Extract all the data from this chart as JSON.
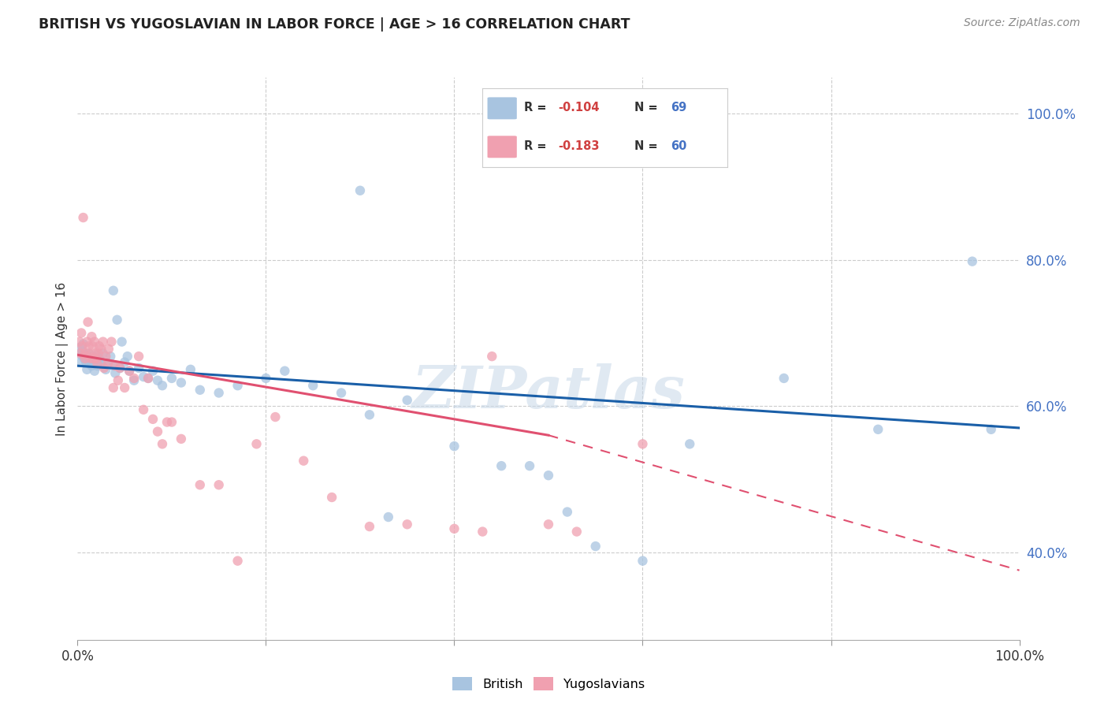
{
  "title": "BRITISH VS YUGOSLAVIAN IN LABOR FORCE | AGE > 16 CORRELATION CHART",
  "source": "Source: ZipAtlas.com",
  "ylabel": "In Labor Force | Age > 16",
  "ylabel_right_ticks": [
    "100.0%",
    "80.0%",
    "60.0%",
    "40.0%"
  ],
  "ylabel_right_vals": [
    1.0,
    0.8,
    0.6,
    0.4
  ],
  "legend_blue_r": "-0.104",
  "legend_blue_n": "69",
  "legend_pink_r": "-0.183",
  "legend_pink_n": "60",
  "british_color": "#a8c4e0",
  "yugoslavian_color": "#f0a0b0",
  "trendline_blue": "#1a5fa8",
  "trendline_pink": "#e05070",
  "watermark": "ZIPatlas",
  "british_x": [
    0.002,
    0.003,
    0.004,
    0.005,
    0.006,
    0.007,
    0.008,
    0.009,
    0.01,
    0.011,
    0.012,
    0.013,
    0.014,
    0.015,
    0.016,
    0.017,
    0.018,
    0.019,
    0.02,
    0.021,
    0.022,
    0.023,
    0.025,
    0.027,
    0.03,
    0.032,
    0.035,
    0.038,
    0.04,
    0.045,
    0.05,
    0.055,
    0.06,
    0.065,
    0.07,
    0.075,
    0.08,
    0.085,
    0.09,
    0.1,
    0.11,
    0.12,
    0.13,
    0.15,
    0.17,
    0.2,
    0.22,
    0.25,
    0.28,
    0.31,
    0.35,
    0.4,
    0.45,
    0.48,
    0.5,
    0.52,
    0.55,
    0.6,
    0.65,
    0.75,
    0.85,
    0.95,
    0.97,
    0.3,
    0.33,
    0.038,
    0.042,
    0.047,
    0.053
  ],
  "british_y": [
    0.68,
    0.67,
    0.66,
    0.675,
    0.685,
    0.665,
    0.67,
    0.66,
    0.65,
    0.668,
    0.672,
    0.658,
    0.662,
    0.655,
    0.668,
    0.66,
    0.648,
    0.665,
    0.67,
    0.655,
    0.66,
    0.665,
    0.66,
    0.672,
    0.65,
    0.658,
    0.668,
    0.655,
    0.645,
    0.652,
    0.66,
    0.648,
    0.635,
    0.652,
    0.64,
    0.638,
    0.648,
    0.635,
    0.628,
    0.638,
    0.632,
    0.65,
    0.622,
    0.618,
    0.628,
    0.638,
    0.648,
    0.628,
    0.618,
    0.588,
    0.608,
    0.545,
    0.518,
    0.518,
    0.505,
    0.455,
    0.408,
    0.388,
    0.548,
    0.638,
    0.568,
    0.798,
    0.568,
    0.895,
    0.448,
    0.758,
    0.718,
    0.688,
    0.668
  ],
  "yugoslavian_x": [
    0.002,
    0.003,
    0.004,
    0.005,
    0.006,
    0.007,
    0.008,
    0.009,
    0.01,
    0.011,
    0.012,
    0.013,
    0.014,
    0.015,
    0.016,
    0.017,
    0.018,
    0.019,
    0.02,
    0.021,
    0.022,
    0.023,
    0.025,
    0.027,
    0.03,
    0.033,
    0.036,
    0.04,
    0.045,
    0.05,
    0.055,
    0.06,
    0.065,
    0.07,
    0.08,
    0.09,
    0.1,
    0.11,
    0.13,
    0.15,
    0.17,
    0.19,
    0.21,
    0.24,
    0.27,
    0.31,
    0.35,
    0.4,
    0.43,
    0.44,
    0.5,
    0.53,
    0.6,
    0.028,
    0.032,
    0.038,
    0.043,
    0.075,
    0.085,
    0.095
  ],
  "yugoslavian_y": [
    0.688,
    0.672,
    0.7,
    0.682,
    0.858,
    0.67,
    0.665,
    0.672,
    0.688,
    0.715,
    0.682,
    0.67,
    0.665,
    0.695,
    0.682,
    0.665,
    0.688,
    0.672,
    0.665,
    0.658,
    0.672,
    0.682,
    0.678,
    0.688,
    0.668,
    0.678,
    0.688,
    0.655,
    0.652,
    0.625,
    0.648,
    0.638,
    0.668,
    0.595,
    0.582,
    0.548,
    0.578,
    0.555,
    0.492,
    0.492,
    0.388,
    0.548,
    0.585,
    0.525,
    0.475,
    0.435,
    0.438,
    0.432,
    0.428,
    0.668,
    0.438,
    0.428,
    0.548,
    0.652,
    0.658,
    0.625,
    0.635,
    0.638,
    0.565,
    0.578
  ],
  "xlim": [
    0.0,
    1.0
  ],
  "ylim": [
    0.28,
    1.05
  ],
  "blue_trend_x0": 0.0,
  "blue_trend_y0": 0.655,
  "blue_trend_x1": 1.0,
  "blue_trend_y1": 0.57,
  "pink_trend_x0": 0.0,
  "pink_trend_y0": 0.67,
  "pink_trend_solid_x1": 0.5,
  "pink_trend_solid_y1": 0.56,
  "pink_trend_dash_x1": 1.0,
  "pink_trend_dash_y1": 0.375
}
